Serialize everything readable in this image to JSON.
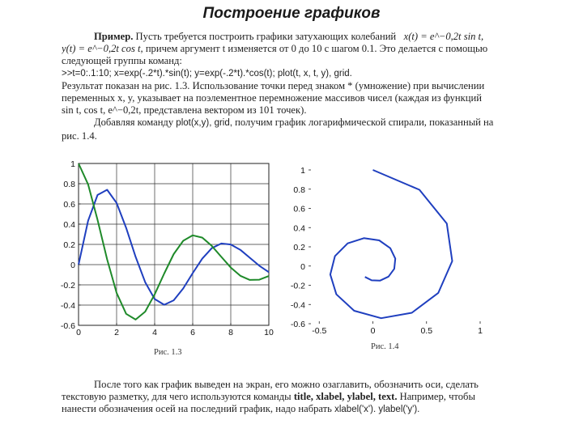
{
  "page": {
    "title": "Построение графиков"
  },
  "para1": {
    "l1_a": "Пример.",
    "l1_b": "Пусть требуется построить графики затухающих колебаний",
    "l1_formula": "x(t) = e^−0,2t sin t,",
    "l2_formula": "y(t) = e^−0,2t cos t,",
    "l2_b": "причем аргумент t изменяется от 0 до 10 с шагом 0.1. Это делается с помощью",
    "l3": "следующей группы команд:",
    "l4_code": ">>t=0:.1:10; x=exp(-.2*t).*sin(t); y=exp(-.2*t).*cos(t); plot(t, x, t, y), grid.",
    "l5": "Результат показан на рис. 1.3. Использование точки перед знаком * (умножение) при вычислении",
    "l6": "переменных x, y, указывает на поэлементное перемножение массивов чисел (каждая из функций",
    "l7": "sin t, cos t, e^−0,2t, представлена вектором из 101 точек).",
    "l8_a": "Добавляя команду",
    "l8_code": "plot(x,y), grid,",
    "l8_b": "получим график логарифмической спирали, показанный на",
    "l9": "рис. 1.4."
  },
  "para2": {
    "l1": "После того как график выведен на экран, его можно озаглавить, обозначить оси, сделать",
    "l2_a": "текстовую разметку, для чего используются команды",
    "l2_cmds": "title, xlabel, ylabel, text.",
    "l2_b": "Например, чтобы",
    "l3_a": "нанести обозначения осей на последний график, надо набрать",
    "l3_code": "xlabel('x'). ylabel('y')."
  },
  "figures": {
    "fig13_caption": "Рис. 1.3",
    "fig14_caption": "Рис. 1.4"
  },
  "colors": {
    "x_series": "#1f3fbf",
    "y_series": "#1f8a2a"
  },
  "chart_data": [
    {
      "type": "line",
      "xlim": [
        0,
        10
      ],
      "ylim": [
        -0.6,
        1
      ],
      "grid": true,
      "x_ticks": [
        "0",
        "2",
        "4",
        "6",
        "8",
        "10"
      ],
      "y_ticks": [
        "-0.6",
        "-0.4",
        "-0.2",
        "0",
        "0.2",
        "0.4",
        "0.6",
        "0.8",
        "1"
      ],
      "series": [
        {
          "expression": "x = exp(-.2*t).*sin(t)",
          "color": "#1f3fbf",
          "x": [
            0,
            0.5,
            1,
            1.5,
            2,
            2.5,
            3,
            3.5,
            4,
            4.5,
            5,
            5.5,
            6,
            6.5,
            7,
            7.5,
            8,
            8.5,
            9,
            9.5,
            10
          ],
          "y": [
            0,
            0.434,
            0.689,
            0.74,
            0.61,
            0.363,
            0.077,
            -0.174,
            -0.34,
            -0.397,
            -0.353,
            -0.235,
            -0.084,
            0.059,
            0.162,
            0.209,
            0.199,
            0.146,
            0.068,
            -0.011,
            -0.074
          ]
        },
        {
          "expression": "y = exp(-.2*t).*cos(t)",
          "color": "#1f8a2a",
          "x": [
            0,
            0.5,
            1,
            1.5,
            2,
            2.5,
            3,
            3.5,
            4,
            4.5,
            5,
            5.5,
            6,
            6.5,
            7,
            7.5,
            8,
            8.5,
            9,
            9.5,
            10
          ],
          "y": [
            1,
            0.794,
            0.442,
            0.052,
            -0.279,
            -0.486,
            -0.543,
            -0.465,
            -0.294,
            -0.088,
            0.104,
            0.236,
            0.29,
            0.267,
            0.186,
            0.077,
            -0.029,
            -0.11,
            -0.151,
            -0.149,
            -0.113
          ]
        }
      ]
    },
    {
      "type": "line",
      "xlim": [
        -0.6,
        1
      ],
      "ylim": [
        -0.6,
        1
      ],
      "grid": false,
      "x_ticks": [
        "-0.5",
        "0",
        "0.5",
        "1"
      ],
      "y_ticks": [
        "-0.6",
        "-0.4",
        "-0.2",
        "0",
        "0.2",
        "0.4",
        "0.6",
        "0.8",
        "1"
      ],
      "series": [
        {
          "expression": "plot(x, y)",
          "color": "#1f3fbf",
          "x": [
            0,
            0.434,
            0.689,
            0.74,
            0.61,
            0.363,
            0.077,
            -0.174,
            -0.34,
            -0.397,
            -0.353,
            -0.235,
            -0.084,
            0.059,
            0.162,
            0.209,
            0.199,
            0.146,
            0.068,
            -0.011,
            -0.074
          ],
          "y": [
            1,
            0.794,
            0.442,
            0.052,
            -0.279,
            -0.486,
            -0.543,
            -0.465,
            -0.294,
            -0.088,
            0.104,
            0.236,
            0.29,
            0.267,
            0.186,
            0.077,
            -0.029,
            -0.11,
            -0.151,
            -0.149,
            -0.113
          ]
        }
      ]
    }
  ]
}
